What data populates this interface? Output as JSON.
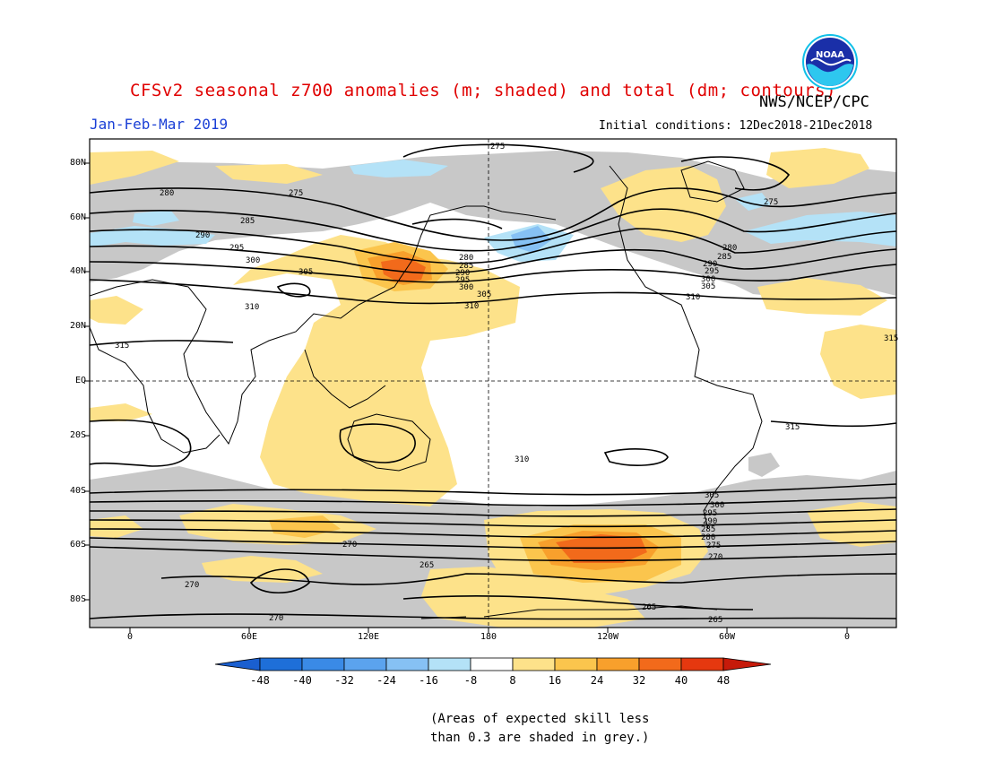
{
  "header": {
    "title": "CFSv2 seasonal z700 anomalies (m; shaded) and total (dm; contours)",
    "agency": "NWS/NCEP/CPC",
    "season": "Jan-Feb-Mar 2019",
    "initial_conditions": "Initial conditions: 12Dec2018-21Dec2018",
    "logo_text": "NOAA"
  },
  "axes": {
    "lat_labels": [
      "80N",
      "60N",
      "40N",
      "20N",
      "EQ",
      "20S",
      "40S",
      "60S",
      "80S"
    ],
    "lon_labels": [
      "0",
      "60E",
      "120E",
      "180",
      "120W",
      "60W",
      "0"
    ]
  },
  "colorbar": {
    "ticks": [
      "-48",
      "-40",
      "-32",
      "-24",
      "-16",
      "-8",
      "8",
      "16",
      "24",
      "32",
      "40",
      "48"
    ],
    "colors": [
      "#1e6fd9",
      "#3a8ae6",
      "#5ba3ee",
      "#86c1f4",
      "#b4e2f7",
      "#ffffff",
      "#fde28a",
      "#fbc54d",
      "#f8a02c",
      "#f26a1b",
      "#e5380f",
      "#c61a0a"
    ]
  },
  "contour_labels": [
    "275",
    "280",
    "285",
    "290",
    "295",
    "300",
    "305",
    "310",
    "315",
    "275",
    "280",
    "285",
    "290",
    "295",
    "300",
    "305",
    "310",
    "315",
    "310",
    "305",
    "300",
    "295",
    "290",
    "285",
    "280",
    "275",
    "270",
    "265",
    "265",
    "270",
    "270",
    "315",
    "310",
    "305",
    "300",
    "295",
    "290",
    "285",
    "280",
    "275",
    "270",
    "265"
  ],
  "note": "(Areas of expected skill less\nthan 0.3 are shaded in grey.)",
  "colors": {
    "title": "#e00000",
    "season": "#1a3fd6",
    "skill_grey": "#c8c8c8"
  }
}
